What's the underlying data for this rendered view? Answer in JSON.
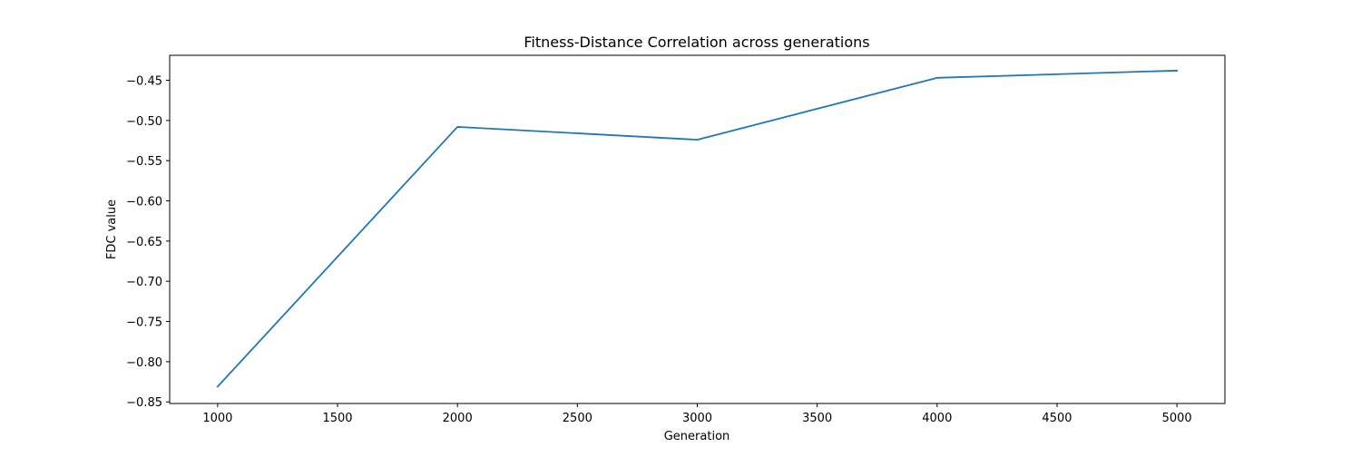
{
  "chart_data": {
    "type": "line",
    "title": "Fitness-Distance Correlation across generations",
    "xlabel": "Generation",
    "ylabel": "FDC value",
    "x": [
      1000,
      2000,
      3000,
      4000,
      5000
    ],
    "series": [
      {
        "values": [
          -0.831,
          -0.508,
          -0.524,
          -0.447,
          -0.438
        ],
        "color": "#1f77b4"
      }
    ],
    "xlim": [
      800,
      5200
    ],
    "ylim": [
      -0.852,
      -0.419
    ],
    "xticks": [
      1000,
      1500,
      2000,
      2500,
      3000,
      3500,
      4000,
      4500,
      5000
    ],
    "yticks": [
      -0.85,
      -0.8,
      -0.75,
      -0.7,
      -0.65,
      -0.6,
      -0.55,
      -0.5,
      -0.45
    ],
    "xtick_labels": [
      "1000",
      "1500",
      "2000",
      "2500",
      "3000",
      "3500",
      "4000",
      "4500",
      "5000"
    ],
    "ytick_labels": [
      "−0.85",
      "−0.80",
      "−0.75",
      "−0.70",
      "−0.65",
      "−0.60",
      "−0.55",
      "−0.50",
      "−0.45"
    ],
    "grid": false,
    "legend": "none"
  }
}
